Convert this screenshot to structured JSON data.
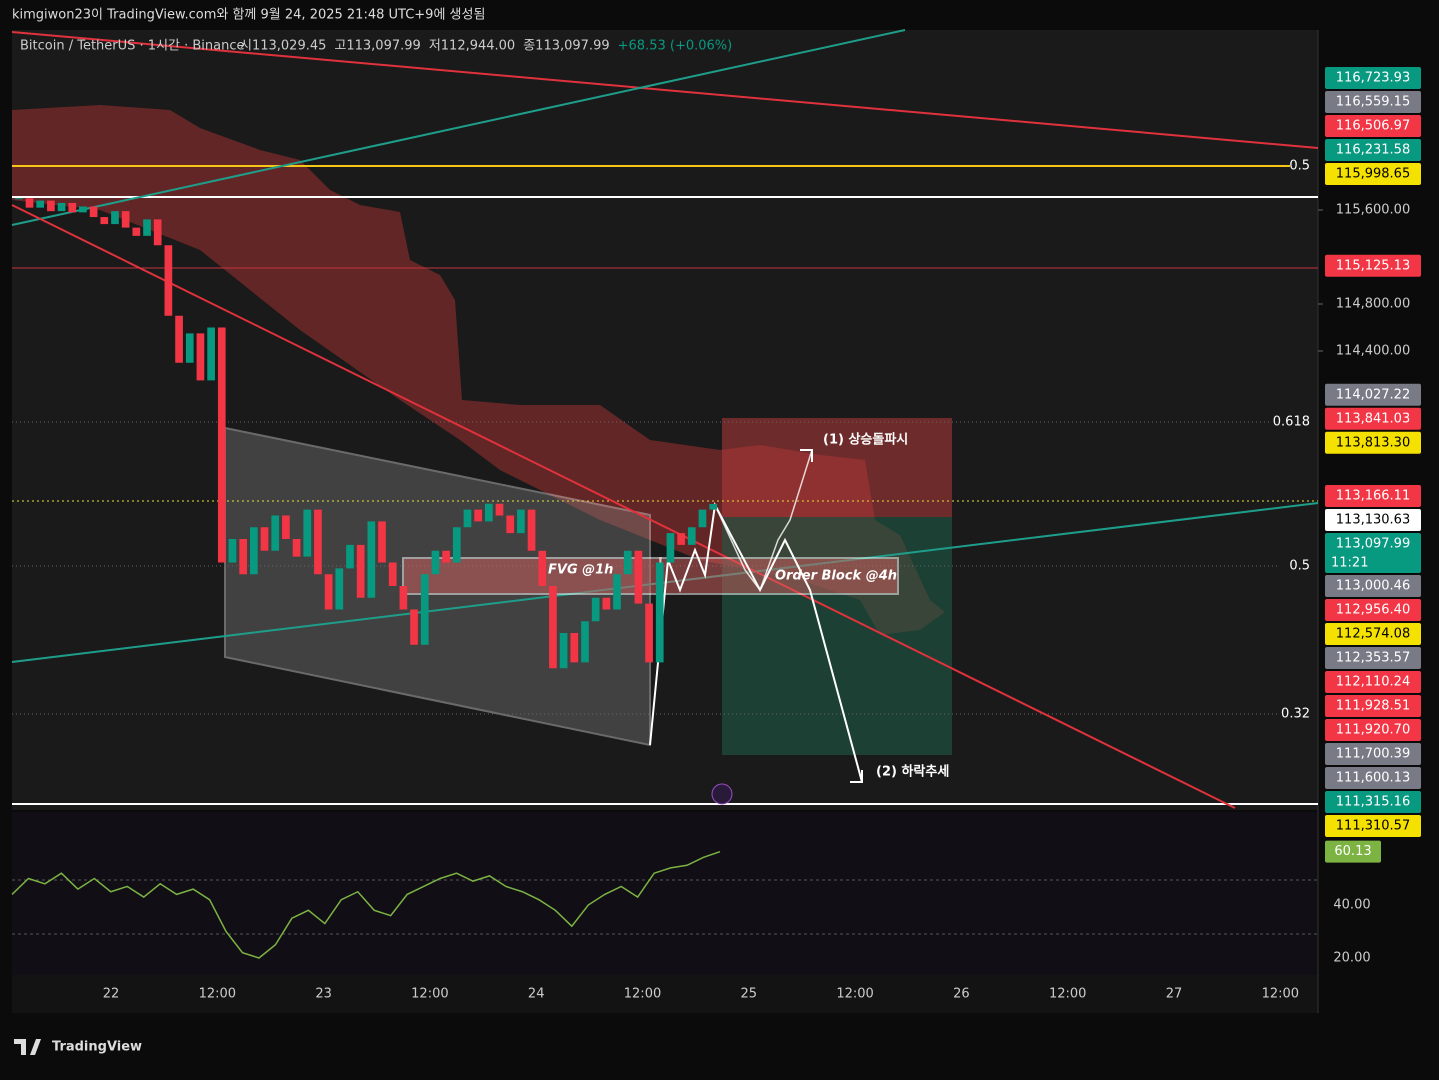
{
  "header": {
    "watermark": "kimgiwon23이 TradingView.com와 함께 9월 24, 2025 21:48 UTC+9에 생성됨",
    "logo": "TradingView"
  },
  "chart_data": {
    "type": "candlestick",
    "symbol": "Bitcoin / TetherUS · 1시간 · Binance",
    "ohlc": [
      "시113,029.45",
      "고113,097.99",
      "저112,944.00",
      "종113,097.99",
      "+68.53 (+0.06%)"
    ],
    "closes": [
      115700,
      115620,
      115680,
      115590,
      115660,
      115580,
      115630,
      115540,
      115480,
      115590,
      115450,
      115380,
      115520,
      115300,
      114700,
      114300,
      114550,
      114150,
      114600,
      112600,
      112800,
      112500,
      112900,
      112700,
      113000,
      112800,
      112650,
      113050,
      112500,
      112200,
      112550,
      112750,
      112300,
      112950,
      112600,
      112400,
      112200,
      111900,
      112500,
      112700,
      112600,
      112900,
      113050,
      112950,
      113100,
      113000,
      112850,
      113050,
      112700,
      112400,
      111700,
      112000,
      111750,
      112100,
      112300,
      112200,
      112500,
      112700,
      112250,
      111750,
      112600,
      112850,
      112750,
      112900,
      113050,
      113097.99
    ],
    "up_color": "#089981",
    "down_color": "#f23645",
    "price_labels": [
      {
        "value": 116723.93,
        "label": "116,723.93",
        "color": "#089981"
      },
      {
        "value": 116559.15,
        "label": "116,559.15",
        "color": "#787b86"
      },
      {
        "value": 116506.97,
        "label": "116,506.97",
        "color": "#f23645"
      },
      {
        "value": 116231.58,
        "label": "116,231.58",
        "color": "#089981"
      },
      {
        "value": 115998.65,
        "label": "115,998.65",
        "color": "#f5e100"
      },
      {
        "value": 115600,
        "label": "115,600.00"
      },
      {
        "value": 115125.13,
        "label": "115,125.13",
        "color": "#f23645"
      },
      {
        "value": 114800,
        "label": "114,800.00"
      },
      {
        "value": 114400,
        "label": "114,400.00"
      },
      {
        "value": 114027.22,
        "label": "114,027.22",
        "color": "#787b86"
      },
      {
        "value": 113841.03,
        "label": "113,841.03",
        "color": "#f23645"
      },
      {
        "value": 113813.3,
        "label": "113,813.30",
        "color": "#f5e100"
      },
      {
        "value": 113166.11,
        "label": "113,166.11",
        "color": "#f23645"
      },
      {
        "value": 113130.63,
        "label": "113,130.63",
        "color": "#ffffff"
      },
      {
        "value": 113097.99,
        "label": "113,097.99",
        "color": "#089981",
        "countdown": "11:21"
      },
      {
        "value": 113000.46,
        "label": "113,000.46",
        "color": "#787b86"
      },
      {
        "value": 112956.4,
        "label": "112,956.40",
        "color": "#f23645"
      },
      {
        "value": 112574.08,
        "label": "112,574.08",
        "color": "#f5e100"
      },
      {
        "value": 112353.57,
        "label": "112,353.57",
        "color": "#787b86"
      },
      {
        "value": 112110.24,
        "label": "112,110.24",
        "color": "#f23645"
      },
      {
        "value": 111928.51,
        "label": "111,928.51",
        "color": "#f23645"
      },
      {
        "value": 111920.7,
        "label": "111,920.70",
        "color": "#f23645"
      },
      {
        "value": 111700.39,
        "label": "111,700.39",
        "color": "#787b86"
      },
      {
        "value": 111600.13,
        "label": "111,600.13",
        "color": "#787b86"
      },
      {
        "value": 111315.16,
        "label": "111,315.16",
        "color": "#089981"
      },
      {
        "value": 111310.57,
        "label": "111,310.57",
        "color": "#f5e100"
      }
    ],
    "time_labels": [
      "22",
      "12:00",
      "23",
      "12:00",
      "24",
      "12:00",
      "25",
      "12:00",
      "26",
      "12:00",
      "27",
      "12:00"
    ],
    "fib_labels": [
      "0.5",
      "0.618",
      "0.5",
      "0.32"
    ],
    "annotations": {
      "breakout": "(1) 상승돌파시",
      "downtrend": "(2) 하락추세",
      "fvg": "FVG @1h",
      "order_block": "Order Block @4h"
    },
    "rsi": {
      "values": [
        44,
        50,
        48,
        52,
        46,
        50,
        45,
        47,
        43,
        48,
        44,
        46,
        42,
        30,
        22,
        20,
        25,
        35,
        38,
        33,
        42,
        45,
        38,
        36,
        44,
        47,
        50,
        52,
        49,
        51,
        47,
        45,
        42,
        38,
        32,
        40,
        44,
        47,
        43,
        52,
        54,
        55,
        58,
        60.13
      ],
      "value_label": "60.13",
      "yticks": [
        {
          "value": 40,
          "label": "40.00"
        },
        {
          "value": 20,
          "label": "20.00"
        }
      ],
      "color": "#7cb342"
    }
  }
}
